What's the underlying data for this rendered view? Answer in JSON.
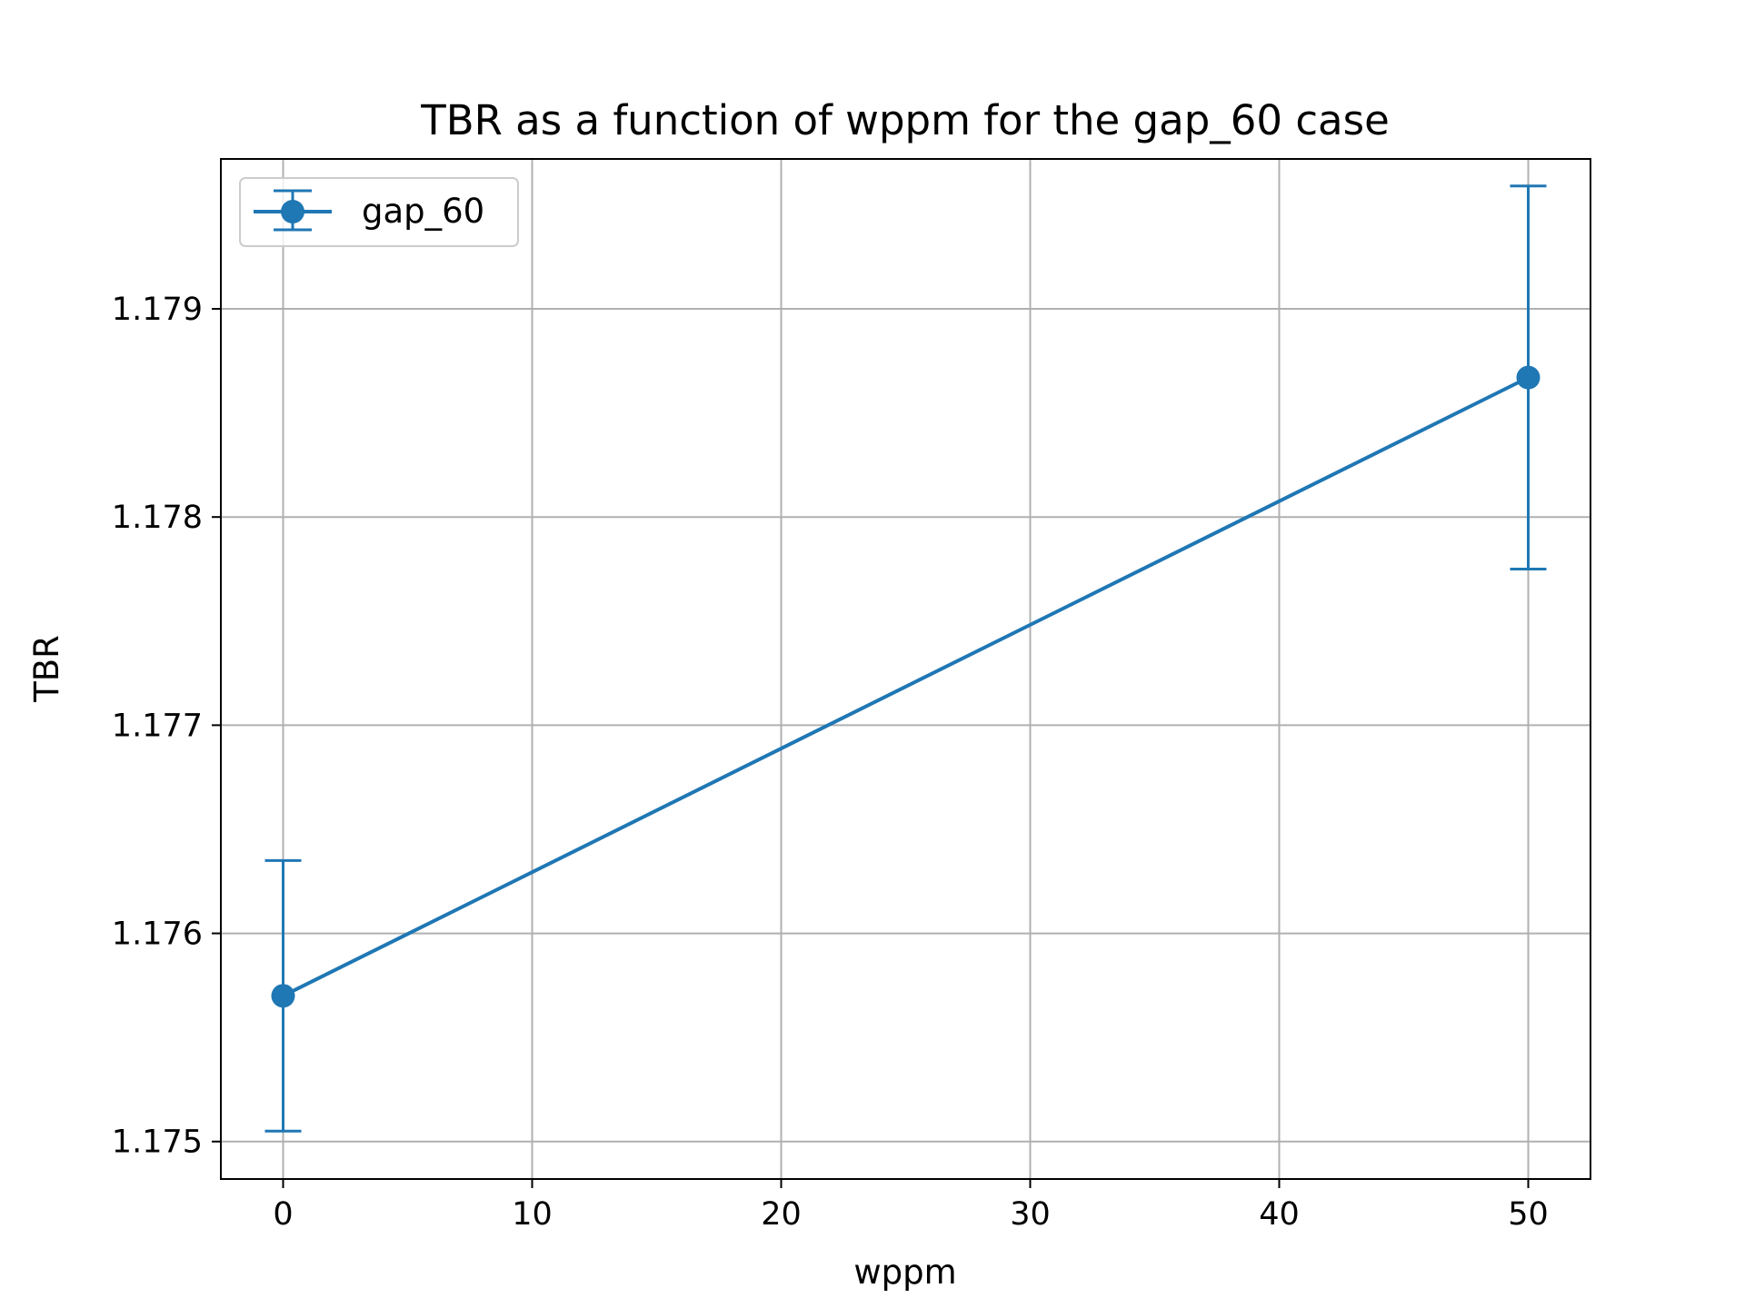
{
  "chart_data": {
    "type": "line",
    "title": "TBR as a function of wppm for the gap_60 case",
    "xlabel": "wppm",
    "ylabel": "TBR",
    "xlim": [
      -2.5,
      52.5
    ],
    "ylim": [
      1.17482,
      1.17972
    ],
    "x_ticks": [
      0,
      10,
      20,
      30,
      40,
      50
    ],
    "y_ticks": [
      1.175,
      1.176,
      1.177,
      1.178,
      1.179
    ],
    "x_tick_labels": [
      "0",
      "10",
      "20",
      "30",
      "40",
      "50"
    ],
    "y_tick_labels": [
      "1.175",
      "1.176",
      "1.177",
      "1.178",
      "1.179"
    ],
    "grid": true,
    "legend_position": "top-left",
    "series": [
      {
        "name": "gap_60",
        "color": "#1f77b4",
        "marker": "circle",
        "error_bars": true,
        "points": [
          {
            "x": 0,
            "y": 1.1757,
            "err": 0.00065
          },
          {
            "x": 50,
            "y": 1.17867,
            "err": 0.00092
          }
        ]
      }
    ]
  }
}
